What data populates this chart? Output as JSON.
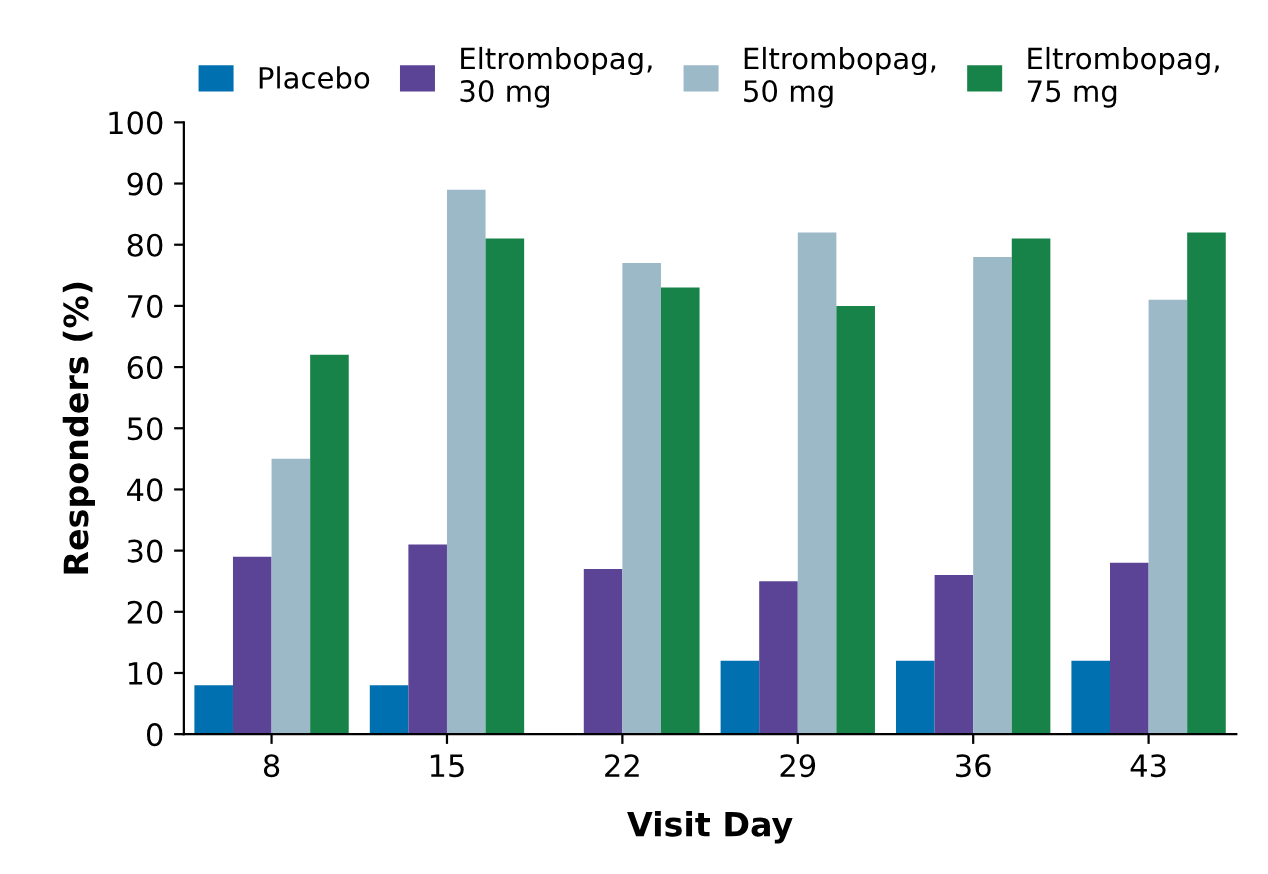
{
  "chart_data": {
    "type": "bar",
    "xlabel": "Visit Day",
    "ylabel": "Responders (%)",
    "categories": [
      "8",
      "15",
      "22",
      "29",
      "36",
      "43"
    ],
    "series": [
      {
        "name": "Placebo",
        "color": "#0070b0",
        "values": [
          8,
          8,
          0,
          12,
          12,
          12
        ]
      },
      {
        "name": "Eltrombopag,\n30 mg",
        "color": "#5b4496",
        "values": [
          29,
          31,
          27,
          25,
          26,
          28
        ]
      },
      {
        "name": "Eltrombopag,\n50 mg",
        "color": "#9cb9c8",
        "values": [
          45,
          89,
          77,
          82,
          78,
          71
        ]
      },
      {
        "name": "Eltrombopag,\n75 mg",
        "color": "#178349",
        "values": [
          62,
          81,
          73,
          70,
          81,
          82
        ]
      }
    ],
    "ylim": [
      0,
      100
    ],
    "yticks": [
      0,
      10,
      20,
      30,
      40,
      50,
      60,
      70,
      80,
      90,
      100
    ],
    "grid": false,
    "legend": "top"
  }
}
